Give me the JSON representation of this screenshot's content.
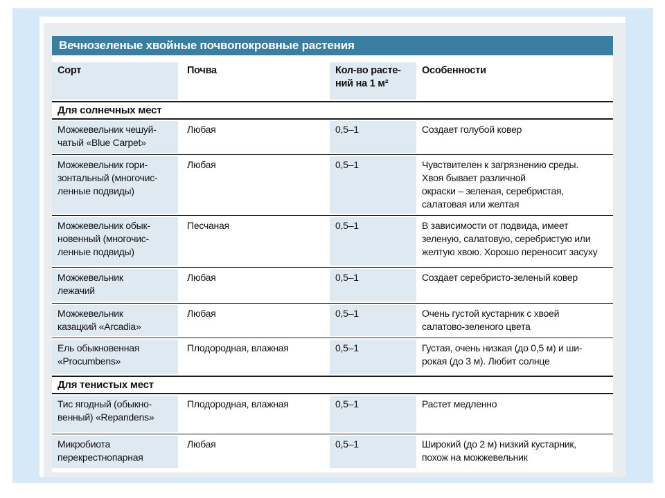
{
  "page": {
    "background": "#ffffff",
    "frame_color": "#d6e9f8",
    "panel_color": "#e9edf0",
    "accent_teal": "#3a7fa1",
    "cell_tint": "#dfe9f1"
  },
  "table": {
    "title": "Вечнозеленые хвойные почвопокровные растения",
    "columns": [
      "Сорт",
      "Почва",
      "Кол-во растений на 1 м²",
      "Особенности"
    ],
    "col3_display": "Кол-во расте-\nний на 1 м²",
    "sections": [
      {
        "heading": "Для солнечных мест",
        "rows": [
          {
            "name": "Можжевельник чешуй-\nчатый «Blue Carpet»",
            "soil": "Любая",
            "qty": "0,5–1",
            "features": "Создает голубой ковер"
          },
          {
            "name": "Можжевельник гори-\nзонтальный (многочис-\nленные подвиды)",
            "soil": "Любая",
            "qty": "0,5–1",
            "features": "Чувствителен к загрязнению среды.\nХвоя бывает различной\nокраски – зеленая, серебристая,\nсалатовая или желтая"
          },
          {
            "name": "Можжевельник обык-\nновенный (многочис-\nленные подвиды)",
            "soil": "Песчаная",
            "qty": "0,5–1",
            "features": "В зависимости от подвида, имеет\nзеленую, салатовую, серебристую или\nжелтую хвою. Хорошо переносит засуху"
          },
          {
            "name": "Можжевельник\nлежачий",
            "soil": "Любая",
            "qty": "0,5–1",
            "features": "Создает серебристо-зеленый ковер"
          },
          {
            "name": "Можжевельник\nказацкий «Arcadia»",
            "soil": "Любая",
            "qty": "0,5–1",
            "features": "Очень густой кустарник с хвоей\nсалатово-зеленого цвета"
          },
          {
            "name": "Ель обыкновенная\n«Procumbens»",
            "soil": "Плодородная, влажная",
            "qty": "0,5–1",
            "features": "Густая, очень низкая (до 0,5 м) и ши-\nрокая (до 3 м). Любит солнце"
          }
        ]
      },
      {
        "heading": "Для тенистых мест",
        "rows": [
          {
            "name": "Тис ягодный (обыкно-\nвенный) «Repandens»",
            "soil": "Плодородная, влажная",
            "qty": "0,5–1",
            "features": "Растет медленно"
          },
          {
            "name": "Микробиота\nперекрестнопарная",
            "soil": "Любая",
            "qty": "0,5–1",
            "features": "Широкий (до 2 м) низкий кустарник,\nпохож на можжевельник"
          }
        ]
      }
    ]
  }
}
